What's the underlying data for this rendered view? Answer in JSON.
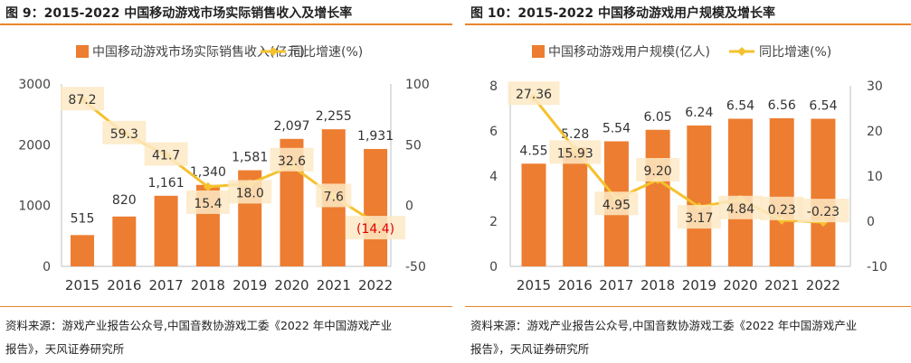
{
  "chart_data": [
    {
      "type": "bar+line",
      "title": "图 9：2015-2022 中国移动游戏市场实际销售收入及增长率",
      "categories": [
        "2015",
        "2016",
        "2017",
        "2018",
        "2019",
        "2020",
        "2021",
        "2022"
      ],
      "series": [
        {
          "name": "中国移动游戏市场实际销售收入(亿元)",
          "type": "bar",
          "axis": "left",
          "color": "#ed7d31",
          "values": [
            515,
            820,
            1161,
            1340,
            1581,
            2097,
            2255,
            1931
          ],
          "labels": [
            "515",
            "820",
            "1,161",
            "1,340",
            "1,581",
            "2,097",
            "2,255",
            "1,931"
          ]
        },
        {
          "name": "同比增速(%)",
          "type": "line",
          "axis": "right",
          "color": "#f5c12e",
          "values": [
            87.2,
            59.3,
            41.7,
            15.4,
            18.0,
            32.6,
            7.6,
            -14.4
          ],
          "labels": [
            "87.2",
            "59.3",
            "41.7",
            "15.4",
            "18.0",
            "32.6",
            "7.6",
            "(14.4)"
          ]
        }
      ],
      "ylim_left": [
        0,
        3000
      ],
      "yticks_left": [
        "0",
        "1000",
        "2000",
        "3000"
      ],
      "ylim_right": [
        -50,
        100
      ],
      "yticks_right": [
        "-50",
        "0",
        "50",
        "100"
      ],
      "legend": "top",
      "source_line1": "资料来源：游戏产业报告公众号,中国音数协游戏工委《2022 年中国游戏产业",
      "source_line2": "报告》，天风证券研究所"
    },
    {
      "type": "bar+line",
      "title": "图 10：2015-2022 中国移动游戏用户规模及增长率",
      "categories": [
        "2015",
        "2016",
        "2017",
        "2018",
        "2019",
        "2020",
        "2021",
        "2022"
      ],
      "series": [
        {
          "name": "中国移动游戏用户规模(亿人)",
          "type": "bar",
          "axis": "left",
          "color": "#ed7d31",
          "values": [
            4.55,
            5.28,
            5.54,
            6.05,
            6.24,
            6.54,
            6.56,
            6.54
          ],
          "labels": [
            "4.55",
            "5.28",
            "5.54",
            "6.05",
            "6.24",
            "6.54",
            "6.56",
            "6.54"
          ]
        },
        {
          "name": "同比增速(%)",
          "type": "line",
          "axis": "right",
          "color": "#f5c12e",
          "values": [
            27.36,
            15.93,
            4.95,
            9.2,
            3.17,
            4.84,
            0.23,
            -0.23
          ],
          "labels": [
            "27.36",
            "15.93",
            "4.95",
            "9.20",
            "3.17",
            "4.84",
            "0.23",
            "-0.23"
          ]
        }
      ],
      "ylim_left": [
        0,
        8
      ],
      "yticks_left": [
        "0",
        "2",
        "4",
        "6",
        "8"
      ],
      "ylim_right": [
        -10,
        30
      ],
      "yticks_right": [
        "-10",
        "0",
        "10",
        "20",
        "30"
      ],
      "legend": "top",
      "source_line1": "资料来源：游戏产业报告公众号,中国音数协游戏工委《2022 年中国游戏产业",
      "source_line2": "报告》，天风证券研究所"
    }
  ]
}
